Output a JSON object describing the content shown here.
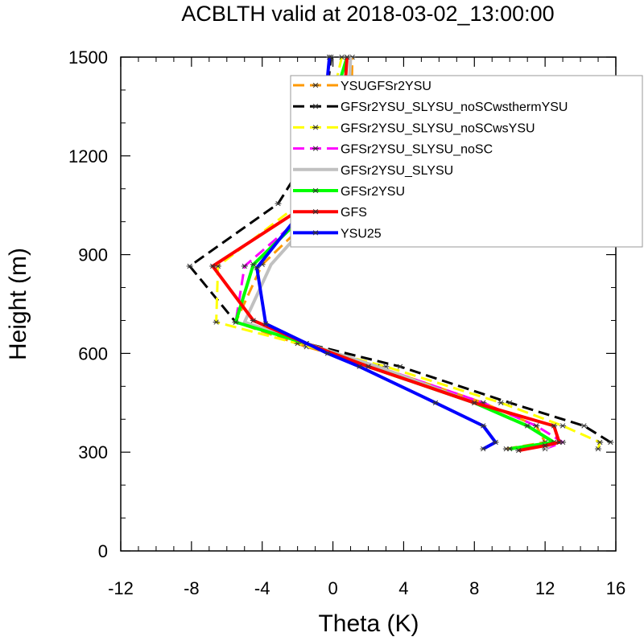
{
  "chart_data": {
    "type": "line",
    "title": "ACBLTH valid at 2018-03-02_13:00:00",
    "xlabel": "Theta (K)",
    "ylabel": "Height (m)",
    "xlim": [
      -12,
      16
    ],
    "ylim": [
      0,
      1500
    ],
    "xticks": [
      "-12",
      "-8",
      "-4",
      "0",
      "4",
      "8",
      "12",
      "16"
    ],
    "yticks": [
      "0",
      "300",
      "600",
      "900",
      "1200",
      "1500"
    ],
    "grid": false,
    "legend_position": "top-right",
    "series": [
      {
        "name": "YSUGFSr2YSU",
        "color": "#ff9900",
        "dash": "dash",
        "marker": "asterisk",
        "points": [
          [
            9.8,
            310
          ],
          [
            12.0,
            330
          ],
          [
            11.5,
            380
          ],
          [
            8.5,
            450
          ],
          [
            2.5,
            560
          ],
          [
            -1.5,
            620
          ],
          [
            -5.5,
            695
          ],
          [
            -4.0,
            870
          ],
          [
            -0.5,
            1050
          ],
          [
            1.0,
            1260
          ],
          [
            1.1,
            1500
          ]
        ]
      },
      {
        "name": "GFSr2YSU_SLYSU_noSCwsthermYSU",
        "color": "#000000",
        "dash": "dash",
        "marker": "asterisk",
        "points": [
          [
            15.7,
            330
          ],
          [
            14.2,
            380
          ],
          [
            10.0,
            450
          ],
          [
            3.8,
            560
          ],
          [
            -1.5,
            630
          ],
          [
            -5.5,
            695
          ],
          [
            -8.1,
            865
          ],
          [
            -3.1,
            1055
          ],
          [
            -0.6,
            1270
          ],
          [
            -0.1,
            1500
          ]
        ]
      },
      {
        "name": "GFSr2YSU_SLYSU_noSCwsYSU",
        "color": "#ffff00",
        "dash": "dash",
        "marker": "asterisk",
        "points": [
          [
            15.0,
            310
          ],
          [
            15.1,
            330
          ],
          [
            13.0,
            380
          ],
          [
            9.5,
            450
          ],
          [
            3.0,
            560
          ],
          [
            -2.0,
            630
          ],
          [
            -6.6,
            695
          ],
          [
            -6.5,
            865
          ],
          [
            -2.0,
            1050
          ],
          [
            -0.5,
            1270
          ],
          [
            0.5,
            1500
          ]
        ]
      },
      {
        "name": "GFSr2YSU_SLYSU_noSC",
        "color": "#ff00ff",
        "dash": "dash",
        "marker": "asterisk",
        "points": [
          [
            12.0,
            310
          ],
          [
            13.0,
            330
          ],
          [
            11.5,
            380
          ],
          [
            8.5,
            450
          ],
          [
            2.5,
            560
          ],
          [
            -1.5,
            630
          ],
          [
            -5.5,
            695
          ],
          [
            -5.0,
            865
          ],
          [
            -1.0,
            1050
          ],
          [
            -0.5,
            1270
          ],
          [
            -0.2,
            1500
          ]
        ]
      },
      {
        "name": "GFSr2YSU_SLYSU",
        "color": "#c0c0c0",
        "dash": "solid",
        "marker": "none",
        "points": [
          [
            12.0,
            310
          ],
          [
            12.5,
            330
          ],
          [
            11.0,
            380
          ],
          [
            8.0,
            450
          ],
          [
            2.5,
            560
          ],
          [
            -1.5,
            630
          ],
          [
            -5.0,
            695
          ],
          [
            -3.5,
            870
          ],
          [
            -0.5,
            1050
          ],
          [
            0.8,
            1270
          ],
          [
            1.0,
            1500
          ]
        ]
      },
      {
        "name": "GFSr2YSU",
        "color": "#00ff00",
        "dash": "solid",
        "marker": "asterisk",
        "points": [
          [
            10.0,
            310
          ],
          [
            12.5,
            330
          ],
          [
            11.0,
            380
          ],
          [
            8.0,
            450
          ],
          [
            2.0,
            560
          ],
          [
            -1.5,
            630
          ],
          [
            -5.5,
            695
          ],
          [
            -4.5,
            870
          ],
          [
            -2.0,
            1000
          ],
          [
            -0.5,
            1270
          ],
          [
            0.8,
            1500
          ]
        ]
      },
      {
        "name": "GFS",
        "color": "#ff0000",
        "dash": "solid",
        "marker": "asterisk",
        "points": [
          [
            10.5,
            305
          ],
          [
            12.0,
            320
          ],
          [
            12.8,
            330
          ],
          [
            12.5,
            380
          ],
          [
            8.0,
            450
          ],
          [
            2.0,
            560
          ],
          [
            -1.5,
            630
          ],
          [
            -4.5,
            700
          ],
          [
            -6.8,
            865
          ],
          [
            -1.5,
            1050
          ],
          [
            0.5,
            1270
          ],
          [
            0.8,
            1500
          ]
        ]
      },
      {
        "name": "YSU25",
        "color": "#0000ff",
        "dash": "solid",
        "marker": "asterisk",
        "points": [
          [
            8.5,
            310
          ],
          [
            9.2,
            330
          ],
          [
            8.5,
            380
          ],
          [
            5.8,
            450
          ],
          [
            1.5,
            560
          ],
          [
            -0.3,
            600
          ],
          [
            -3.8,
            690
          ],
          [
            -4.3,
            860
          ],
          [
            -1.5,
            1050
          ],
          [
            -0.6,
            1270
          ],
          [
            -0.2,
            1500
          ]
        ]
      }
    ]
  }
}
